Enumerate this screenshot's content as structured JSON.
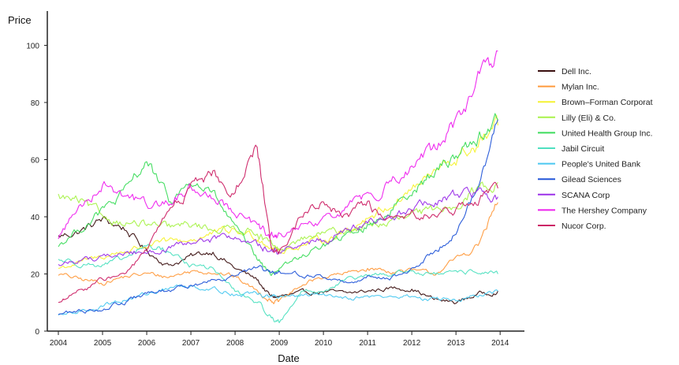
{
  "chart_data": {
    "type": "line",
    "title": "",
    "xlabel": "Date",
    "ylabel": "Price",
    "xlim": [
      2003.75,
      2014.55
    ],
    "ylim": [
      0,
      112
    ],
    "x_ticks": [
      2004,
      2005,
      2006,
      2007,
      2008,
      2009,
      2010,
      2011,
      2012,
      2013,
      2014
    ],
    "x_tick_labels": [
      "2004",
      "2005",
      "2006",
      "2007",
      "2008",
      "2009",
      "2010",
      "2011",
      "2012",
      "2013",
      "2014"
    ],
    "y_ticks": [
      0,
      20,
      40,
      60,
      80,
      100
    ],
    "y_tick_labels": [
      "0",
      "20",
      "40",
      "60",
      "80",
      "100"
    ],
    "grid": false,
    "legend_position": "right",
    "x": [
      2004.0,
      2004.5,
      2005.0,
      2005.5,
      2006.0,
      2006.5,
      2007.0,
      2007.5,
      2008.0,
      2008.5,
      2008.8,
      2009.0,
      2009.5,
      2010.0,
      2010.5,
      2011.0,
      2011.5,
      2012.0,
      2012.5,
      2013.0,
      2013.5,
      2013.95
    ],
    "series": [
      {
        "name": "Dell Inc.",
        "color": "#3a0f0f",
        "values": [
          33,
          35,
          39,
          36,
          28,
          23,
          26,
          28,
          22,
          18,
          12,
          12,
          13,
          14,
          13,
          14,
          15,
          15,
          11,
          10,
          13,
          14
        ]
      },
      {
        "name": "Mylan Inc.",
        "color": "#ff9a3c",
        "values": [
          20,
          18,
          17,
          19,
          20,
          19,
          21,
          21,
          19,
          14,
          11,
          10,
          16,
          19,
          20,
          22,
          21,
          21,
          20,
          25,
          30,
          45
        ]
      },
      {
        "name": "Brown–Forman Corporat",
        "color": "#f5f232",
        "values": [
          22,
          24,
          26,
          28,
          30,
          31,
          32,
          34,
          35,
          33,
          30,
          28,
          30,
          32,
          35,
          40,
          44,
          50,
          55,
          60,
          65,
          72
        ]
      },
      {
        "name": "Lilly (Eli) & Co.",
        "color": "#a8f24a",
        "values": [
          47,
          45,
          40,
          38,
          37,
          36,
          37,
          36,
          36,
          35,
          30,
          28,
          32,
          34,
          35,
          37,
          38,
          40,
          42,
          45,
          50,
          52
        ]
      },
      {
        "name": "United Health Group Inc.",
        "color": "#3ddc5c",
        "values": [
          30,
          36,
          42,
          48,
          60,
          45,
          52,
          48,
          36,
          25,
          20,
          22,
          26,
          30,
          33,
          37,
          42,
          50,
          55,
          62,
          68,
          74
        ]
      },
      {
        "name": "Jabil Circuit",
        "color": "#4fe0c0",
        "values": [
          25,
          24,
          23,
          25,
          30,
          28,
          23,
          22,
          14,
          10,
          5,
          3,
          14,
          14,
          18,
          19,
          20,
          21,
          20,
          20,
          21,
          20
        ]
      },
      {
        "name": "People's United Bank",
        "color": "#4ac8f0",
        "values": [
          5,
          7,
          9,
          11,
          13,
          15,
          16,
          15,
          13,
          13,
          12,
          12,
          12,
          13,
          12,
          12,
          12,
          12,
          11,
          11,
          12,
          14
        ]
      },
      {
        "name": "Gilead Sciences",
        "color": "#2255d8",
        "values": [
          6,
          7,
          8,
          10,
          13,
          14,
          16,
          18,
          20,
          22,
          20,
          20,
          20,
          19,
          17,
          19,
          19,
          21,
          28,
          35,
          50,
          74
        ]
      },
      {
        "name": "SCANA Corp",
        "color": "#9b30e8",
        "values": [
          23,
          25,
          26,
          27,
          28,
          29,
          30,
          32,
          33,
          30,
          28,
          28,
          30,
          32,
          35,
          37,
          40,
          43,
          45,
          47,
          48,
          47
        ]
      },
      {
        "name": "The Hershey Company",
        "color": "#ee22ee",
        "values": [
          33,
          44,
          52,
          48,
          44,
          45,
          50,
          48,
          42,
          36,
          33,
          33,
          36,
          38,
          43,
          47,
          52,
          57,
          63,
          73,
          87,
          98
        ]
      },
      {
        "name": "Nucor Corp.",
        "color": "#cc2266",
        "values": [
          10,
          14,
          18,
          20,
          28,
          42,
          50,
          55,
          48,
          66,
          30,
          28,
          40,
          45,
          40,
          44,
          38,
          42,
          40,
          42,
          46,
          50
        ]
      }
    ]
  }
}
